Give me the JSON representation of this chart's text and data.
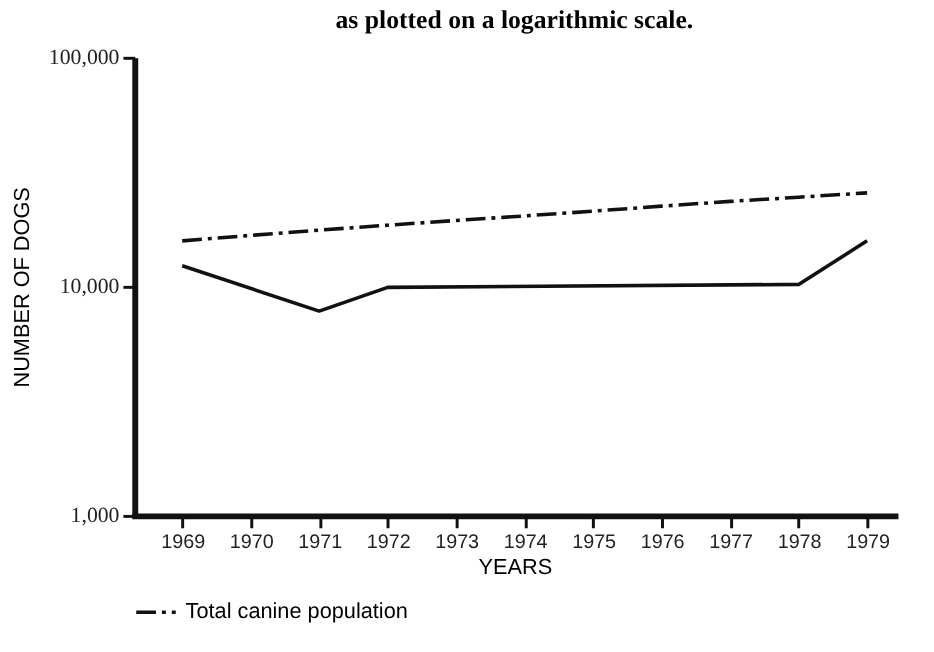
{
  "chart_data": {
    "type": "line",
    "title": "as plotted on a logarithmic scale.",
    "xlabel": "YEARS",
    "ylabel": "NUMBER OF DOGS",
    "series": [
      {
        "name": "Total canine population",
        "color": "#111111",
        "line_style": "dashed",
        "x": [
          1969,
          1970,
          1971,
          1972,
          1973,
          1974,
          1975,
          1976,
          1977,
          1978,
          1979
        ],
        "values": [
          15800,
          16700,
          17600,
          18500,
          19400,
          20300,
          21300,
          22400,
          23500,
          24500,
          25600
        ]
      },
      {
        "color": "#111111",
        "line_style": "solid",
        "x": [
          1969,
          1971,
          1972,
          1978,
          1979
        ],
        "values": [
          12300,
          7800,
          9900,
          10200,
          15800
        ]
      }
    ],
    "log": true,
    "xlim": [
      1968.3,
      1979.4
    ],
    "ylim": [
      1000,
      100000
    ],
    "xticks": [
      1969,
      1970,
      1971,
      1972,
      1973,
      1974,
      1975,
      1976,
      1977,
      1978,
      1979
    ],
    "yticks": [
      {
        "value": 1000,
        "label": "1,000"
      },
      {
        "value": 10000,
        "label": "10,000"
      },
      {
        "value": 100000,
        "label": "100,000"
      }
    ],
    "grid": false,
    "legend": "bottom",
    "marker": "none"
  }
}
